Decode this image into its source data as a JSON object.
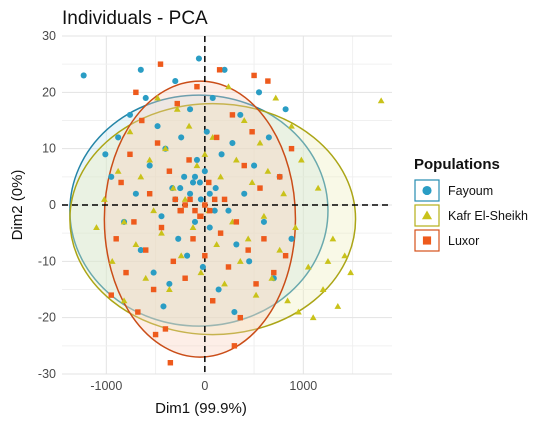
{
  "chart_data": {
    "type": "scatter",
    "title": "Individuals - PCA",
    "xlabel": "Dim1 (99.9%)",
    "ylabel": "Dim2 (0%)",
    "xlim": [
      -1450,
      1900
    ],
    "ylim": [
      -30,
      30
    ],
    "xticks": [
      -1000,
      0,
      1000
    ],
    "yticks": [
      -30,
      -20,
      -10,
      0,
      10,
      20,
      30
    ],
    "xtick_labels": [
      "-1000",
      "0",
      "1000"
    ],
    "ytick_labels": [
      "-30",
      "-20",
      "-10",
      "0",
      "10",
      "20",
      "30"
    ],
    "grid": true,
    "reference_lines": {
      "x": 0,
      "y": 0,
      "style": "dashed"
    },
    "legend": {
      "title": "Populations",
      "placement": "right",
      "items": [
        "Fayoum",
        "Kafr El-Sheikh",
        "Luxor"
      ]
    },
    "series": [
      {
        "name": "Fayoum",
        "marker": "circle",
        "color": "#2a9dc4",
        "ellipse": {
          "cx": -60,
          "cy": -1,
          "rx": 1310,
          "ry": 20.5
        },
        "points": [
          [
            -1230,
            23
          ],
          [
            -1010,
            9
          ],
          [
            -950,
            5
          ],
          [
            -880,
            12
          ],
          [
            -820,
            -3
          ],
          [
            -760,
            16
          ],
          [
            -700,
            2
          ],
          [
            -650,
            -8
          ],
          [
            -600,
            19
          ],
          [
            -560,
            7
          ],
          [
            -520,
            -12
          ],
          [
            -480,
            14
          ],
          [
            -440,
            -2
          ],
          [
            -400,
            10
          ],
          [
            -360,
            -14
          ],
          [
            -330,
            3
          ],
          [
            -300,
            22
          ],
          [
            -270,
            -6
          ],
          [
            -240,
            12
          ],
          [
            -210,
            5
          ],
          [
            -180,
            -9
          ],
          [
            -150,
            17
          ],
          [
            -120,
            4
          ],
          [
            -100,
            -3
          ],
          [
            -80,
            8
          ],
          [
            -60,
            26
          ],
          [
            -40,
            1
          ],
          [
            -20,
            -11
          ],
          [
            0,
            6
          ],
          [
            20,
            13
          ],
          [
            50,
            -4
          ],
          [
            80,
            19
          ],
          [
            110,
            3
          ],
          [
            140,
            -15
          ],
          [
            170,
            9
          ],
          [
            200,
            24
          ],
          [
            240,
            -1
          ],
          [
            280,
            11
          ],
          [
            320,
            -7
          ],
          [
            360,
            16
          ],
          [
            400,
            2
          ],
          [
            450,
            -10
          ],
          [
            500,
            7
          ],
          [
            550,
            20
          ],
          [
            600,
            -3
          ],
          [
            650,
            12
          ],
          [
            700,
            -13
          ],
          [
            760,
            5
          ],
          [
            820,
            17
          ],
          [
            880,
            -6
          ],
          [
            -300,
            1
          ],
          [
            -250,
            3
          ],
          [
            -150,
            2
          ],
          [
            -100,
            5
          ],
          [
            -50,
            4
          ],
          [
            50,
            2
          ],
          [
            100,
            -1
          ],
          [
            -650,
            24
          ],
          [
            -420,
            -18
          ],
          [
            300,
            -19
          ]
        ]
      },
      {
        "name": "Kafr El-Sheikh",
        "marker": "triangle",
        "color": "#c9c21a",
        "ellipse": {
          "cx": 80,
          "cy": -2.5,
          "rx": 1450,
          "ry": 20.5
        },
        "points": [
          [
            1790,
            18.5
          ],
          [
            1480,
            -12
          ],
          [
            1420,
            -9
          ],
          [
            1350,
            -18
          ],
          [
            1300,
            -6
          ],
          [
            1200,
            -15
          ],
          [
            1150,
            3
          ],
          [
            1100,
            -20
          ],
          [
            1050,
            -11
          ],
          [
            980,
            8
          ],
          [
            920,
            -4
          ],
          [
            880,
            14
          ],
          [
            840,
            -17
          ],
          [
            800,
            2
          ],
          [
            760,
            -8
          ],
          [
            720,
            19
          ],
          [
            680,
            -13
          ],
          [
            640,
            6
          ],
          [
            600,
            -2
          ],
          [
            560,
            11
          ],
          [
            520,
            -16
          ],
          [
            480,
            4
          ],
          [
            440,
            -6
          ],
          [
            400,
            15
          ],
          [
            360,
            -10
          ],
          [
            320,
            8
          ],
          [
            280,
            -3
          ],
          [
            240,
            21
          ],
          [
            200,
            -14
          ],
          [
            160,
            5
          ],
          [
            120,
            -7
          ],
          [
            80,
            12
          ],
          [
            40,
            -1
          ],
          [
            0,
            9
          ],
          [
            -40,
            -12
          ],
          [
            -80,
            7
          ],
          [
            -120,
            -4
          ],
          [
            -160,
            14
          ],
          [
            -200,
            1
          ],
          [
            -240,
            -9
          ],
          [
            -280,
            17
          ],
          [
            -320,
            3
          ],
          [
            -360,
            -15
          ],
          [
            -400,
            10
          ],
          [
            -440,
            -5
          ],
          [
            -480,
            19
          ],
          [
            -520,
            -1
          ],
          [
            -560,
            8
          ],
          [
            -600,
            -13
          ],
          [
            -650,
            5
          ],
          [
            -700,
            -7
          ],
          [
            -760,
            13
          ],
          [
            -820,
            -3
          ],
          [
            -880,
            6
          ],
          [
            -940,
            -10
          ],
          [
            -1020,
            1
          ],
          [
            -1100,
            -4
          ],
          [
            950,
            -19
          ],
          [
            1250,
            -10
          ],
          [
            -820,
            -17
          ]
        ]
      },
      {
        "name": "Luxor",
        "marker": "square",
        "color": "#ee5a1c",
        "ellipse": {
          "cx": -50,
          "cy": -2.5,
          "rx": 970,
          "ry": 24.5
        },
        "points": [
          [
            -900,
            -6
          ],
          [
            -850,
            4
          ],
          [
            -800,
            -12
          ],
          [
            -760,
            9
          ],
          [
            -720,
            -3
          ],
          [
            -680,
            -19
          ],
          [
            -640,
            15
          ],
          [
            -600,
            -8
          ],
          [
            -560,
            2
          ],
          [
            -520,
            -15
          ],
          [
            -480,
            11
          ],
          [
            -440,
            -4
          ],
          [
            -400,
            -22
          ],
          [
            -360,
            6
          ],
          [
            -320,
            -10
          ],
          [
            -280,
            18
          ],
          [
            -240,
            -1
          ],
          [
            -200,
            -13
          ],
          [
            -160,
            8
          ],
          [
            -120,
            -6
          ],
          [
            -80,
            21
          ],
          [
            -40,
            -2
          ],
          [
            0,
            -9
          ],
          [
            40,
            4
          ],
          [
            80,
            -17
          ],
          [
            120,
            12
          ],
          [
            160,
            -5
          ],
          [
            200,
            1
          ],
          [
            240,
            -11
          ],
          [
            280,
            16
          ],
          [
            320,
            -3
          ],
          [
            360,
            -20
          ],
          [
            400,
            7
          ],
          [
            440,
            -8
          ],
          [
            480,
            13
          ],
          [
            520,
            -14
          ],
          [
            560,
            3
          ],
          [
            600,
            -6
          ],
          [
            640,
            22
          ],
          [
            700,
            -12
          ],
          [
            760,
            5
          ],
          [
            820,
            -9
          ],
          [
            880,
            10
          ],
          [
            -300,
            1
          ],
          [
            -250,
            -1
          ],
          [
            -200,
            0
          ],
          [
            -150,
            1
          ],
          [
            -100,
            -1
          ],
          [
            -50,
            -2
          ],
          [
            0,
            0
          ],
          [
            50,
            -1
          ],
          [
            100,
            1
          ],
          [
            -350,
            -28
          ],
          [
            -500,
            -23
          ],
          [
            300,
            -25
          ],
          [
            -700,
            20
          ],
          [
            500,
            23
          ],
          [
            -450,
            25
          ],
          [
            150,
            24
          ],
          [
            -950,
            -16
          ]
        ]
      }
    ]
  }
}
